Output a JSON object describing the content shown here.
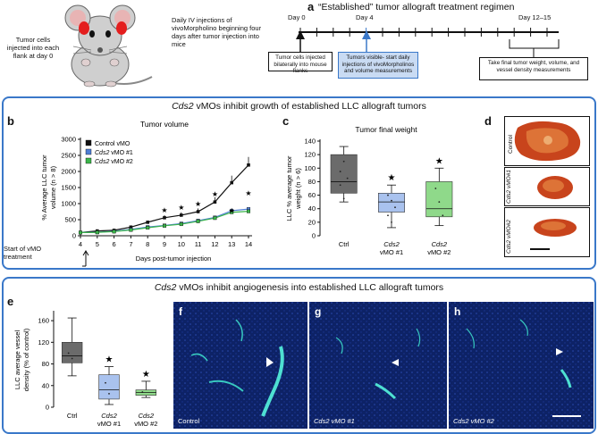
{
  "figure": {
    "panel_a": {
      "letter": "a",
      "mouse_caption": "Tumor cells injected into each flank at day 0",
      "injection_caption": "Daily IV injections of vivoMorpholino beginning four days after tumor injection into mice",
      "timeline_title": "“Established” tumor allograft treatment regimen",
      "day_labels": [
        "Day 0",
        "Day 4",
        "Day 12–15"
      ],
      "callouts": [
        "Tumor cells injected bilaterally into mouse flanks",
        "Tumors visible- start daily injections of vivoMorpholinos and volume measurements",
        "Take final tumor weight, volume, and vessel density measurements"
      ]
    },
    "section1_title_gene": "Cds2",
    "section1_title_rest": " vMOs inhibit growth of established LLC allograft tumors",
    "section2_title_gene": "Cds2",
    "section2_title_rest": " vMOs inhibit angiogenesis into established LLC allograft tumors",
    "panel_b": {
      "letter": "b",
      "title": "Tumor volume",
      "ylabel_line1": "% Average LLC tumor",
      "ylabel_line2": "volume (n > 8)",
      "xlabel": "Days post-tumor injection",
      "start_note_line1": "Start of vMO",
      "start_note_line2": "treatment",
      "legend": [
        "Control vMO",
        "Cds2 vMO #1",
        "Cds2 vMO #2"
      ],
      "y_ticks": [
        "0",
        "500",
        "1000",
        "1500",
        "2000",
        "2500",
        "3000"
      ],
      "x_ticks": [
        "4",
        "5",
        "6",
        "7",
        "8",
        "9",
        "10",
        "11",
        "12",
        "13",
        "14"
      ],
      "star": "★"
    },
    "panel_c": {
      "letter": "c",
      "title": "Tumor final weight",
      "ylabel_line1": "LLC % average tumor",
      "ylabel_line2": "weight (n > 6)",
      "y_ticks": [
        "0",
        "20",
        "40",
        "60",
        "80",
        "100",
        "120",
        "140"
      ],
      "categories": [
        "Ctrl",
        "Cds2\nvMO #1",
        "Cds2\nvMO #2"
      ]
    },
    "panel_d": {
      "letter": "d",
      "labels": [
        "Control",
        "Cds2 vMO#1",
        "Cds2 vMO#2"
      ]
    },
    "panel_e": {
      "letter": "e",
      "ylabel_line1": "LLC average vessel",
      "ylabel_line2": "density (% of control)",
      "y_ticks": [
        "0",
        "40",
        "80",
        "120",
        "160"
      ],
      "categories": [
        "Ctrl",
        "Cds2\nvMO #1",
        "Cds2\nvMO #2"
      ]
    },
    "micrographs": [
      {
        "letter": "f",
        "label": "Control"
      },
      {
        "letter": "g",
        "label": "Cds2 vMO #1"
      },
      {
        "letter": "h",
        "label": "Cds2 vMO #2"
      }
    ],
    "colors": {
      "control": "#111111",
      "vmo1": "#4f7fd6",
      "vmo2": "#3bb54a",
      "box_ctrl": "#6b6b6b",
      "box_vmo1": "#a9c2ee",
      "box_vmo2": "#8fd98a",
      "frame": "#3a78c9"
    }
  },
  "chart_data": [
    {
      "type": "line",
      "title": "Tumor volume",
      "xlabel": "Days post-tumor injection",
      "ylabel": "% Average LLC tumor volume (n > 8)",
      "x": [
        4,
        5,
        6,
        7,
        8,
        9,
        10,
        11,
        12,
        13,
        14
      ],
      "ylim": [
        0,
        3000
      ],
      "series": [
        {
          "name": "Control vMO",
          "values": [
            100,
            150,
            170,
            270,
            420,
            560,
            640,
            750,
            1050,
            1650,
            2200
          ],
          "errors": [
            20,
            20,
            30,
            40,
            50,
            80,
            90,
            100,
            150,
            220,
            250
          ]
        },
        {
          "name": "Cds2 vMO #1",
          "values": [
            100,
            110,
            140,
            200,
            270,
            320,
            380,
            470,
            570,
            780,
            830
          ],
          "errors": [
            15,
            15,
            20,
            25,
            30,
            40,
            50,
            60,
            70,
            90,
            100
          ]
        },
        {
          "name": "Cds2 vMO #2",
          "values": [
            100,
            105,
            130,
            180,
            250,
            310,
            360,
            450,
            550,
            730,
            760
          ],
          "errors": [
            15,
            15,
            20,
            25,
            30,
            40,
            50,
            60,
            70,
            90,
            100
          ]
        }
      ],
      "significance_at_x": [
        9,
        10,
        11,
        12,
        13,
        14
      ],
      "legend": "top-left"
    },
    {
      "type": "box",
      "title": "Tumor final weight",
      "ylabel": "LLC % average tumor weight (n > 6)",
      "ylim": [
        0,
        140
      ],
      "categories": [
        "Ctrl",
        "Cds2 vMO #1",
        "Cds2 vMO #2"
      ],
      "boxes": [
        {
          "min": 50,
          "q1": 63,
          "median": 80,
          "q3": 120,
          "max": 132,
          "points": [
            95,
            110,
            85,
            75,
            55
          ],
          "star": false
        },
        {
          "min": 12,
          "q1": 35,
          "median": 50,
          "q3": 63,
          "max": 75,
          "points": [
            60,
            52,
            42,
            30,
            20
          ],
          "star": true
        },
        {
          "min": 15,
          "q1": 28,
          "median": 40,
          "q3": 80,
          "max": 100,
          "points": [
            70,
            50,
            30
          ],
          "star": true
        }
      ]
    },
    {
      "type": "box",
      "ylabel": "LLC average vessel density (% of control)",
      "ylim": [
        0,
        160
      ],
      "categories": [
        "Ctrl",
        "Cds2 vMO #1",
        "Cds2 vMO #2"
      ],
      "boxes": [
        {
          "min": 58,
          "q1": 82,
          "median": 95,
          "q3": 120,
          "max": 165,
          "points": [
            100,
            90
          ],
          "star": false
        },
        {
          "min": 5,
          "q1": 15,
          "median": 32,
          "q3": 60,
          "max": 75,
          "points": [
            45,
            25
          ],
          "star": true
        },
        {
          "min": 18,
          "q1": 22,
          "median": 27,
          "q3": 32,
          "max": 48,
          "points": [
            28
          ],
          "star": true
        }
      ]
    }
  ]
}
